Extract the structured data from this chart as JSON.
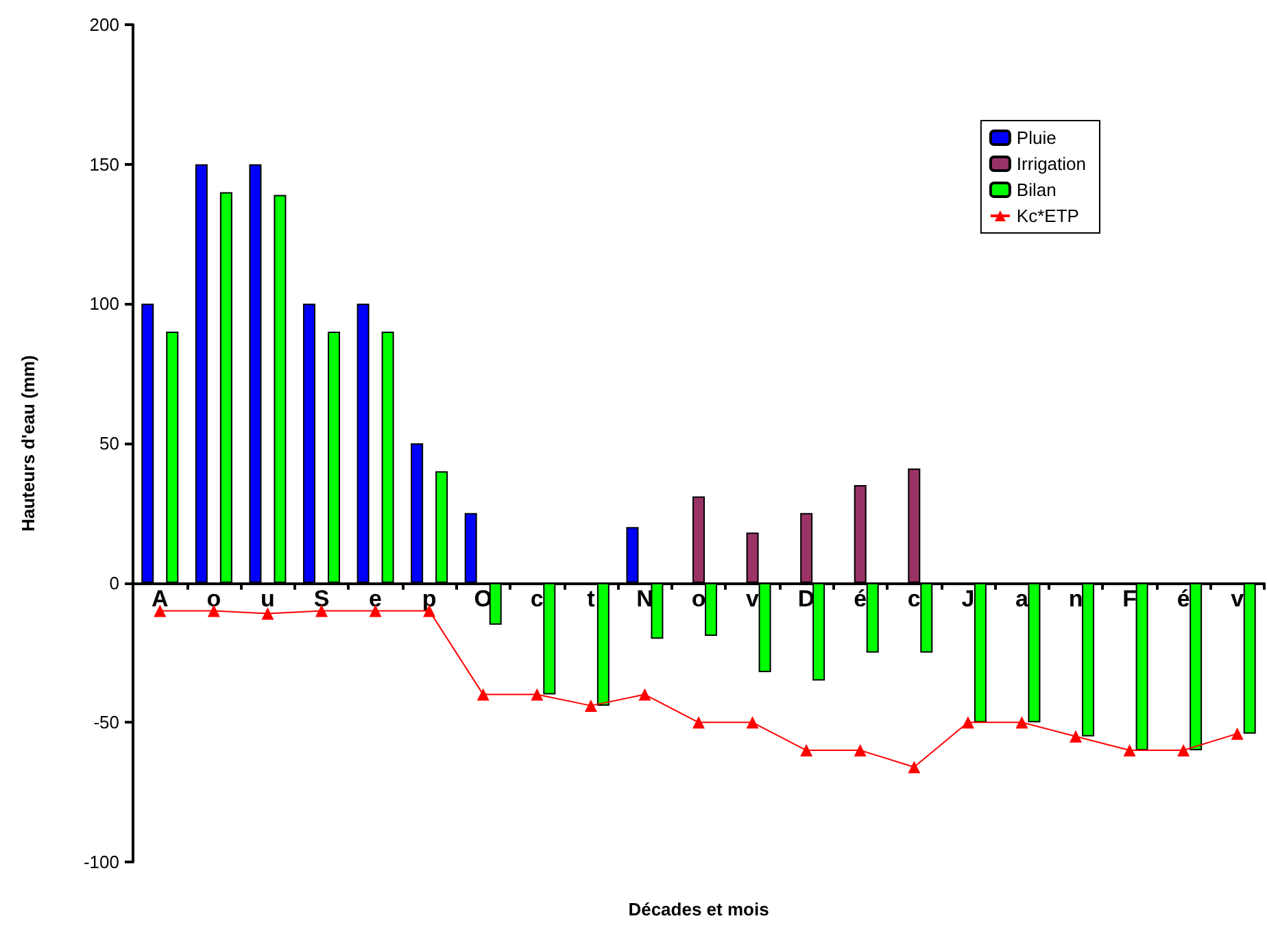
{
  "chart_data": {
    "type": "bar",
    "xlabel": "Décades et mois",
    "ylabel": "Hauteurs d'eau (mm)",
    "categories": [
      "A",
      "o",
      "u",
      "S",
      "e",
      "p",
      "O",
      "c",
      "t",
      "N",
      "o",
      "v",
      "D",
      "é",
      "c",
      "J",
      "a",
      "n",
      "F",
      "é",
      "v"
    ],
    "series": [
      {
        "name": "Pluie",
        "color": "#0000ff",
        "values": [
          100,
          150,
          150,
          100,
          100,
          50,
          25,
          null,
          null,
          20,
          null,
          null,
          null,
          null,
          null,
          null,
          null,
          null,
          null,
          null,
          null
        ]
      },
      {
        "name": "Irrigation",
        "color": "#993366",
        "values": [
          null,
          null,
          null,
          null,
          null,
          null,
          null,
          null,
          null,
          null,
          31,
          18,
          25,
          35,
          41,
          null,
          null,
          null,
          null,
          null,
          null
        ]
      },
      {
        "name": "Bilan",
        "color": "#00ff00",
        "values": [
          90,
          140,
          139,
          90,
          90,
          40,
          -15,
          -40,
          -44,
          -20,
          -19,
          -32,
          -35,
          -25,
          -25,
          -50,
          -50,
          -55,
          -60,
          -60,
          -54
        ]
      },
      {
        "name": "Kc*ETP",
        "color": "#ff0000",
        "type": "line",
        "marker": "triangle",
        "values": [
          -10,
          -10,
          -11,
          -10,
          -10,
          -10,
          -40,
          -40,
          -44,
          -40,
          -50,
          -50,
          -60,
          -60,
          -66,
          -50,
          -50,
          -55,
          -60,
          -60,
          -54
        ]
      }
    ],
    "ylim": [
      -100,
      200
    ],
    "yticks": [
      -100,
      -50,
      0,
      50,
      100,
      150,
      200
    ],
    "grid": false,
    "legend": "top right"
  }
}
